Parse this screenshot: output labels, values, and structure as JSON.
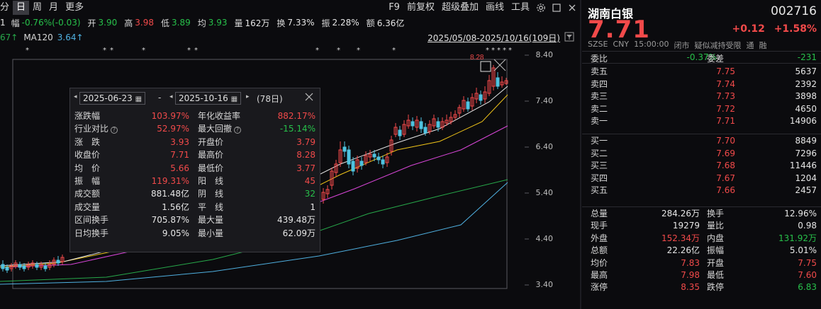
{
  "toolbar": {
    "tabs": [
      "分",
      "日",
      "周",
      "月",
      "更多"
    ],
    "active_tab": "日",
    "tools": [
      "F9",
      "前复权",
      "超级叠加",
      "画线",
      "工具"
    ]
  },
  "stats_row": {
    "prefix": "1",
    "fu_label": "幅",
    "fu_value": "-0.76%(-0.03)",
    "kai_label": "开",
    "kai_value": "3.90",
    "gao_label": "高",
    "gao_value": "3.98",
    "di_label": "低",
    "di_value": "3.89",
    "jun_label": "均",
    "jun_value": "3.93",
    "liang_label": "量",
    "liang_value": "162万",
    "huan_label": "换",
    "huan_value": "7.33%",
    "zhen_label": "振",
    "zhen_value": "2.28%",
    "e_label": "额",
    "e_value": "6.36亿"
  },
  "ma_row": {
    "left_partial": "67↑",
    "ma120_label": "MA120",
    "ma120_value": "3.64↑",
    "date_range": "2025/05/08-2025/10/16(109日)"
  },
  "price_axis": [
    "8.40",
    "7.40",
    "6.40",
    "5.40",
    "4.40",
    "3.40"
  ],
  "chart_annotation": "8.28",
  "popup": {
    "start_date": "2025-06-23",
    "end_date": "2025-10-16",
    "separator": "-",
    "days": "(78日)",
    "rows": [
      {
        "l1": "涨跌幅",
        "v1": "103.97%",
        "c1": "red",
        "l2": "年化收益率",
        "v2": "882.17%",
        "c2": "red"
      },
      {
        "l1": "行业对比",
        "q1": true,
        "v1": "52.97%",
        "c1": "red",
        "l2": "最大回撤",
        "q2": true,
        "v2": "-15.14%",
        "c2": "green"
      },
      {
        "l1": "涨　跌",
        "v1": "3.93",
        "c1": "red",
        "l2": "开盘价",
        "v2": "3.79",
        "c2": "red"
      },
      {
        "l1": "收盘价",
        "v1": "7.71",
        "c1": "red",
        "l2": "最高价",
        "v2": "8.28",
        "c2": "red"
      },
      {
        "l1": "均　价",
        "v1": "5.66",
        "c1": "red",
        "l2": "最低价",
        "v2": "3.77",
        "c2": "red"
      },
      {
        "l1": "振　幅",
        "v1": "119.31%",
        "c1": "red",
        "l2": "阳　线",
        "v2": "45",
        "c2": "red"
      },
      {
        "l1": "成交额",
        "v1": "881.48亿",
        "c1": "white",
        "l2": "阴　线",
        "v2": "32",
        "c2": "green"
      },
      {
        "l1": "成交量",
        "v1": "1.56亿",
        "c1": "white",
        "l2": "平　线",
        "v2": "1",
        "c2": "white"
      },
      {
        "l1": "区间换手",
        "v1": "705.87%",
        "c1": "white",
        "l2": "最大量",
        "v2": "439.48万",
        "c2": "white"
      },
      {
        "l1": "日均换手",
        "v1": "9.05%",
        "c1": "white",
        "l2": "最小量",
        "v2": "62.09万",
        "c2": "white"
      }
    ]
  },
  "quote": {
    "name": "湖南白银",
    "code": "002716",
    "price": "7.71",
    "change": "+0.12",
    "change_pct": "+1.58%",
    "meta": [
      "SZSE",
      "CNY",
      "15:00:00",
      "闭市",
      "疑似减持受限",
      "通",
      "融"
    ],
    "webi_label": "委比",
    "webi_value": "-0.37%",
    "weicha_label": "委差",
    "weicha_value": "-231",
    "asks": [
      {
        "n": "卖五",
        "p": "7.75",
        "v": "5637",
        "c": "red"
      },
      {
        "n": "卖四",
        "p": "7.74",
        "v": "2392",
        "c": "red"
      },
      {
        "n": "卖三",
        "p": "7.73",
        "v": "3898",
        "c": "red"
      },
      {
        "n": "卖二",
        "p": "7.72",
        "v": "4650",
        "c": "red"
      },
      {
        "n": "卖一",
        "p": "7.71",
        "v": "14906",
        "c": "red"
      }
    ],
    "bids": [
      {
        "n": "买一",
        "p": "7.70",
        "v": "8849",
        "c": "red"
      },
      {
        "n": "买二",
        "p": "7.69",
        "v": "7296",
        "c": "red"
      },
      {
        "n": "买三",
        "p": "7.68",
        "v": "11446",
        "c": "red"
      },
      {
        "n": "买四",
        "p": "7.67",
        "v": "1204",
        "c": "red"
      },
      {
        "n": "买五",
        "p": "7.66",
        "v": "2457",
        "c": "red"
      }
    ],
    "stats": [
      {
        "a": "总量",
        "av": "284.26万",
        "ac": "white",
        "b": "换手",
        "bv": "12.96%",
        "bc": "white"
      },
      {
        "a": "现手",
        "av": "19279",
        "ac": "white",
        "b": "量比",
        "bv": "0.98",
        "bc": "white"
      },
      {
        "a": "外盘",
        "av": "152.34万",
        "ac": "red",
        "b": "内盘",
        "bv": "131.92万",
        "bc": "green"
      },
      {
        "a": "总额",
        "av": "22.26亿",
        "ac": "white",
        "b": "振幅",
        "bv": "5.01%",
        "bc": "white"
      },
      {
        "a": "均价",
        "av": "7.83",
        "ac": "red",
        "b": "开盘",
        "bv": "7.75",
        "bc": "red"
      },
      {
        "a": "最高",
        "av": "7.98",
        "ac": "red",
        "b": "最低",
        "bv": "7.60",
        "bc": "red"
      },
      {
        "a": "涨停",
        "av": "8.35",
        "ac": "red",
        "b": "跌停",
        "bv": "6.83",
        "bc": "green"
      }
    ]
  },
  "colors": {
    "up": "#f24a4a",
    "down": "#27c04a",
    "candle_down": "#4fc3e0",
    "ma5": "#e6e6e6",
    "ma10": "#f0c419",
    "ma20": "#d946d9",
    "ma60": "#27a84a",
    "ma120": "#4fb0e0"
  },
  "icons": [
    "settings-icon",
    "maximize-icon",
    "close-icon",
    "filter-icon",
    "calendar-icon"
  ]
}
